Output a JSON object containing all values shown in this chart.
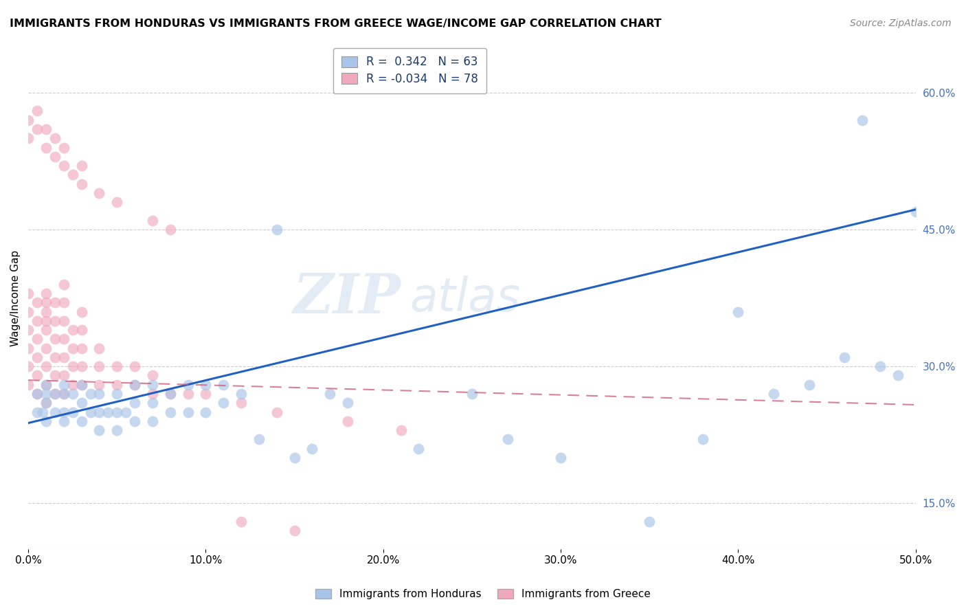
{
  "title": "IMMIGRANTS FROM HONDURAS VS IMMIGRANTS FROM GREECE WAGE/INCOME GAP CORRELATION CHART",
  "source": "Source: ZipAtlas.com",
  "ylabel": "Wage/Income Gap",
  "xlim": [
    0.0,
    0.5
  ],
  "ylim": [
    0.1,
    0.65
  ],
  "y_ticks_right": [
    0.15,
    0.3,
    0.45,
    0.6
  ],
  "legend_r_honduras": "0.342",
  "legend_n_honduras": "63",
  "legend_r_greece": "-0.034",
  "legend_n_greece": "78",
  "honduras_color": "#a8c4e8",
  "greece_color": "#f0a8bc",
  "trend_honduras_color": "#2060c0",
  "trend_greece_color": "#d06080",
  "watermark_zip": "ZIP",
  "watermark_atlas": "atlas",
  "honduras_x": [
    0.005,
    0.005,
    0.008,
    0.01,
    0.01,
    0.01,
    0.01,
    0.015,
    0.015,
    0.02,
    0.02,
    0.02,
    0.02,
    0.025,
    0.025,
    0.03,
    0.03,
    0.03,
    0.035,
    0.035,
    0.04,
    0.04,
    0.04,
    0.045,
    0.05,
    0.05,
    0.05,
    0.055,
    0.06,
    0.06,
    0.06,
    0.07,
    0.07,
    0.07,
    0.08,
    0.08,
    0.09,
    0.09,
    0.1,
    0.1,
    0.11,
    0.11,
    0.12,
    0.13,
    0.14,
    0.15,
    0.16,
    0.17,
    0.18,
    0.22,
    0.25,
    0.27,
    0.3,
    0.35,
    0.38,
    0.4,
    0.42,
    0.44,
    0.46,
    0.47,
    0.48,
    0.49,
    0.5
  ],
  "honduras_y": [
    0.25,
    0.27,
    0.25,
    0.24,
    0.26,
    0.27,
    0.28,
    0.25,
    0.27,
    0.24,
    0.25,
    0.27,
    0.28,
    0.25,
    0.27,
    0.24,
    0.26,
    0.28,
    0.25,
    0.27,
    0.23,
    0.25,
    0.27,
    0.25,
    0.23,
    0.25,
    0.27,
    0.25,
    0.24,
    0.26,
    0.28,
    0.24,
    0.26,
    0.28,
    0.25,
    0.27,
    0.25,
    0.28,
    0.25,
    0.28,
    0.26,
    0.28,
    0.27,
    0.22,
    0.45,
    0.2,
    0.21,
    0.27,
    0.26,
    0.21,
    0.27,
    0.22,
    0.2,
    0.13,
    0.22,
    0.36,
    0.27,
    0.28,
    0.31,
    0.57,
    0.3,
    0.29,
    0.47
  ],
  "greece_x": [
    0.0,
    0.0,
    0.0,
    0.0,
    0.0,
    0.0,
    0.005,
    0.005,
    0.005,
    0.005,
    0.005,
    0.005,
    0.01,
    0.01,
    0.01,
    0.01,
    0.01,
    0.01,
    0.01,
    0.01,
    0.01,
    0.015,
    0.015,
    0.015,
    0.015,
    0.015,
    0.015,
    0.02,
    0.02,
    0.02,
    0.02,
    0.02,
    0.02,
    0.02,
    0.025,
    0.025,
    0.025,
    0.025,
    0.03,
    0.03,
    0.03,
    0.03,
    0.03,
    0.04,
    0.04,
    0.04,
    0.05,
    0.05,
    0.06,
    0.06,
    0.07,
    0.07,
    0.08,
    0.09,
    0.1,
    0.12,
    0.14,
    0.18,
    0.21,
    0.0,
    0.0,
    0.005,
    0.005,
    0.01,
    0.01,
    0.015,
    0.015,
    0.02,
    0.02,
    0.025,
    0.03,
    0.03,
    0.04,
    0.05,
    0.07,
    0.08,
    0.12,
    0.15
  ],
  "greece_y": [
    0.28,
    0.3,
    0.32,
    0.34,
    0.36,
    0.38,
    0.27,
    0.29,
    0.31,
    0.33,
    0.35,
    0.37,
    0.26,
    0.28,
    0.3,
    0.32,
    0.34,
    0.35,
    0.36,
    0.37,
    0.38,
    0.27,
    0.29,
    0.31,
    0.33,
    0.35,
    0.37,
    0.27,
    0.29,
    0.31,
    0.33,
    0.35,
    0.37,
    0.39,
    0.28,
    0.3,
    0.32,
    0.34,
    0.28,
    0.3,
    0.32,
    0.34,
    0.36,
    0.28,
    0.3,
    0.32,
    0.28,
    0.3,
    0.28,
    0.3,
    0.27,
    0.29,
    0.27,
    0.27,
    0.27,
    0.26,
    0.25,
    0.24,
    0.23,
    0.55,
    0.57,
    0.56,
    0.58,
    0.54,
    0.56,
    0.53,
    0.55,
    0.52,
    0.54,
    0.51,
    0.5,
    0.52,
    0.49,
    0.48,
    0.46,
    0.45,
    0.13,
    0.12
  ],
  "trend_h_x0": 0.0,
  "trend_h_y0": 0.238,
  "trend_h_x1": 0.5,
  "trend_h_y1": 0.472,
  "trend_g_x0": 0.0,
  "trend_g_y0": 0.285,
  "trend_g_x1": 0.5,
  "trend_g_y1": 0.258
}
